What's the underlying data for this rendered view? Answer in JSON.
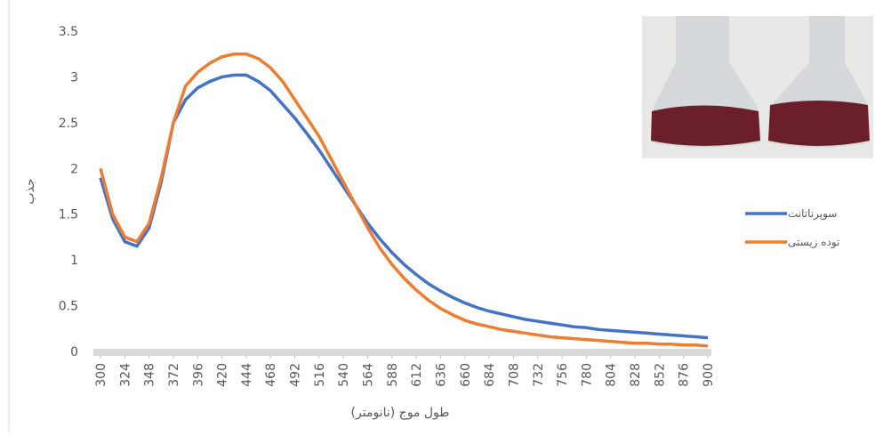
{
  "chart_data": {
    "type": "line",
    "x_label": "طول موج (نانومتر)",
    "y_label": "جذب",
    "x": [
      300,
      312,
      324,
      336,
      348,
      360,
      372,
      384,
      396,
      408,
      420,
      432,
      444,
      456,
      468,
      480,
      492,
      504,
      516,
      528,
      540,
      552,
      564,
      576,
      588,
      600,
      612,
      624,
      636,
      648,
      660,
      672,
      684,
      696,
      708,
      720,
      732,
      744,
      756,
      768,
      780,
      792,
      804,
      816,
      828,
      840,
      852,
      864,
      876,
      888,
      900
    ],
    "series": [
      {
        "name": "سوپرناتانت",
        "color": "#4472c4",
        "values": [
          1.9,
          1.45,
          1.2,
          1.15,
          1.35,
          1.85,
          2.5,
          2.75,
          2.88,
          2.95,
          3.0,
          3.02,
          3.02,
          2.95,
          2.85,
          2.7,
          2.55,
          2.38,
          2.2,
          2.0,
          1.8,
          1.6,
          1.4,
          1.23,
          1.08,
          0.95,
          0.84,
          0.74,
          0.66,
          0.59,
          0.53,
          0.48,
          0.44,
          0.41,
          0.38,
          0.35,
          0.33,
          0.31,
          0.29,
          0.27,
          0.26,
          0.24,
          0.23,
          0.22,
          0.21,
          0.2,
          0.19,
          0.18,
          0.17,
          0.16,
          0.15
        ]
      },
      {
        "name": "توده زیستی",
        "color": "#ed7d31",
        "values": [
          2.0,
          1.5,
          1.25,
          1.2,
          1.4,
          1.9,
          2.5,
          2.9,
          3.05,
          3.15,
          3.22,
          3.25,
          3.25,
          3.2,
          3.1,
          2.95,
          2.75,
          2.55,
          2.35,
          2.1,
          1.85,
          1.6,
          1.35,
          1.13,
          0.95,
          0.8,
          0.67,
          0.56,
          0.47,
          0.4,
          0.34,
          0.3,
          0.27,
          0.24,
          0.22,
          0.2,
          0.18,
          0.16,
          0.15,
          0.14,
          0.13,
          0.12,
          0.11,
          0.1,
          0.09,
          0.09,
          0.08,
          0.08,
          0.07,
          0.07,
          0.06
        ]
      }
    ],
    "xlim": [
      300,
      900
    ],
    "xticks": [
      300,
      324,
      348,
      372,
      396,
      420,
      444,
      468,
      492,
      516,
      540,
      564,
      588,
      612,
      636,
      660,
      684,
      708,
      732,
      756,
      780,
      804,
      828,
      852,
      876,
      900
    ],
    "ylim": [
      0,
      3.5
    ],
    "yticks": [
      0,
      0.5,
      1,
      1.5,
      2,
      2.5,
      3,
      {
        "value": 3.5,
        "label": "3.5"
      }
    ],
    "grid": false,
    "legend_position": "right"
  }
}
